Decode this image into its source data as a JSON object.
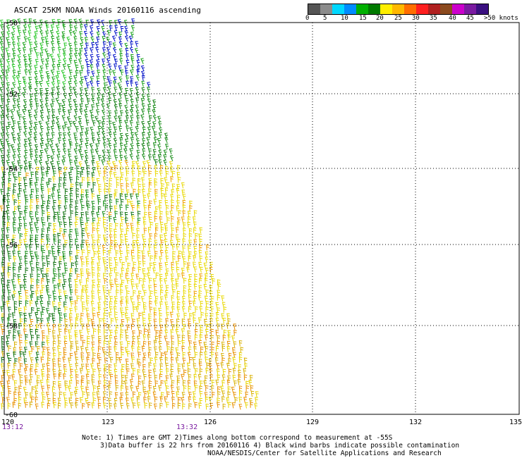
{
  "title": "ASCAT 25KM NOAA Winds 20160116 ascending",
  "legend": {
    "colors": [
      "#555555",
      "#8c8c8c",
      "#00d8ff",
      "#008cff",
      "#00b000",
      "#007a00",
      "#ffee00",
      "#ffb800",
      "#ff6e00",
      "#ff2020",
      "#b02020",
      "#8b4a1e",
      "#cc00cc",
      "#7a1aa0",
      "#3a1080"
    ],
    "labels": [
      "0",
      "5",
      "10",
      "15",
      "20",
      "25",
      "30",
      "35",
      "40",
      "45",
      ">50 knots"
    ]
  },
  "map": {
    "lat_labels": [
      "-50",
      "-52",
      "-54",
      "-56",
      "-58",
      "-60"
    ],
    "lon_labels": [
      "120",
      "123",
      "126",
      "129",
      "132",
      "135"
    ],
    "times": [
      "13:12",
      "13:32"
    ]
  },
  "notes": {
    "line1": "Note: 1) Times are GMT 2)Times along bottom correspond to measurement at -55S",
    "line2": "3)Data buffer is 22 hrs from 20160116 4) Black wind barbs indicate possible contamination",
    "line3": "NOAA/NESDIS/Center for Satellite Applications and Research"
  }
}
